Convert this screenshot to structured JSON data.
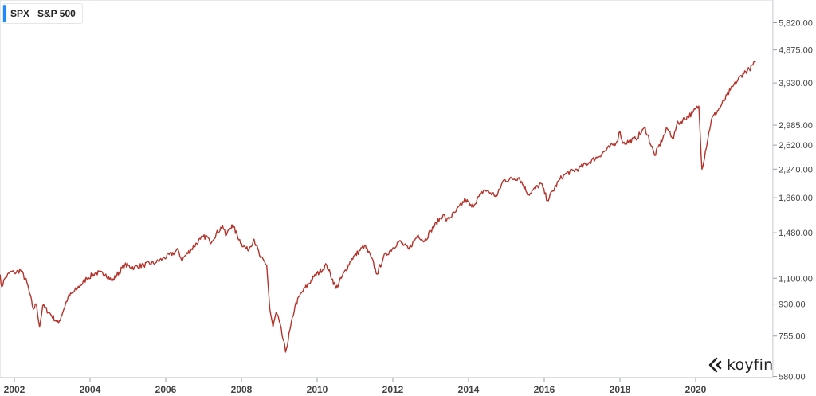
{
  "legend": {
    "ticker": "SPX",
    "name": "S&P 500",
    "color": "#1a8cff"
  },
  "brand": {
    "name": "koyfin",
    "icon": "koyfin-logo-icon"
  },
  "chart_data": {
    "type": "line",
    "title": "",
    "xlabel": "",
    "ylabel": "",
    "y_scale": "log",
    "ylim": [
      580,
      6700
    ],
    "xlim": [
      "2001-08",
      "2021-10"
    ],
    "y_ticks": [
      5820,
      4875,
      3930,
      2985,
      2620,
      2240,
      1860,
      1480,
      1100,
      930,
      755,
      580
    ],
    "y_tick_labels": [
      "5,820.00",
      "4,875.00",
      "3,930.00",
      "2,985.00",
      "2,620.00",
      "2,240.00",
      "1,860.00",
      "1,480.00",
      "1,100.00",
      "930.00",
      "755.00",
      "580.00"
    ],
    "x_ticks": [
      "2002",
      "2004",
      "2006",
      "2008",
      "2010",
      "2012",
      "2014",
      "2016",
      "2018",
      "2020"
    ],
    "line_color": "#b5332b",
    "grid": false,
    "series": [
      {
        "x": [
          "2001-08",
          "2001-09",
          "2001-10",
          "2001-12",
          "2002-01",
          "2002-03",
          "2002-05",
          "2002-07",
          "2002-08",
          "2002-09",
          "2002-10",
          "2002-12",
          "2003-03",
          "2003-06",
          "2003-09",
          "2003-12",
          "2004-03",
          "2004-06",
          "2004-08",
          "2004-12",
          "2005-03",
          "2005-06",
          "2005-10",
          "2005-12",
          "2006-05",
          "2006-06",
          "2006-12",
          "2007-02",
          "2007-03",
          "2007-07",
          "2007-08",
          "2007-10",
          "2008-01",
          "2008-03",
          "2008-05",
          "2008-07",
          "2008-09",
          "2008-10",
          "2008-11",
          "2008-12",
          "2009-01",
          "2009-03",
          "2009-06",
          "2009-08",
          "2009-12",
          "2010-04",
          "2010-07",
          "2010-12",
          "2011-04",
          "2011-06",
          "2011-08",
          "2011-10",
          "2012-03",
          "2012-06",
          "2012-09",
          "2012-11",
          "2013-01",
          "2013-05",
          "2013-06",
          "2013-09",
          "2013-12",
          "2014-02",
          "2014-06",
          "2014-10",
          "2014-12",
          "2015-05",
          "2015-08",
          "2015-12",
          "2016-02",
          "2016-06",
          "2016-08",
          "2016-12",
          "2017-06",
          "2017-12",
          "2018-01",
          "2018-02",
          "2018-06",
          "2018-09",
          "2018-12",
          "2019-04",
          "2019-06",
          "2019-07",
          "2019-12",
          "2020-02",
          "2020-03",
          "2020-06",
          "2020-09",
          "2020-12",
          "2021-04",
          "2021-06",
          "2021-08"
        ],
        "values": [
          1180,
          1040,
          1100,
          1150,
          1140,
          1160,
          1070,
          900,
          930,
          800,
          920,
          880,
          820,
          970,
          1030,
          1100,
          1140,
          1130,
          1080,
          1200,
          1180,
          1200,
          1220,
          1250,
          1320,
          1240,
          1420,
          1450,
          1390,
          1550,
          1450,
          1560,
          1380,
          1320,
          1420,
          1260,
          1200,
          900,
          800,
          880,
          830,
          680,
          920,
          1000,
          1110,
          1200,
          1030,
          1250,
          1360,
          1270,
          1130,
          1260,
          1400,
          1330,
          1460,
          1400,
          1500,
          1670,
          1600,
          1700,
          1840,
          1750,
          1960,
          1880,
          2080,
          2120,
          1900,
          2040,
          1830,
          2100,
          2180,
          2250,
          2430,
          2680,
          2870,
          2650,
          2730,
          2930,
          2450,
          2920,
          2740,
          3000,
          3230,
          3380,
          2240,
          3100,
          3380,
          3750,
          4180,
          4300,
          4500
        ]
      }
    ]
  }
}
